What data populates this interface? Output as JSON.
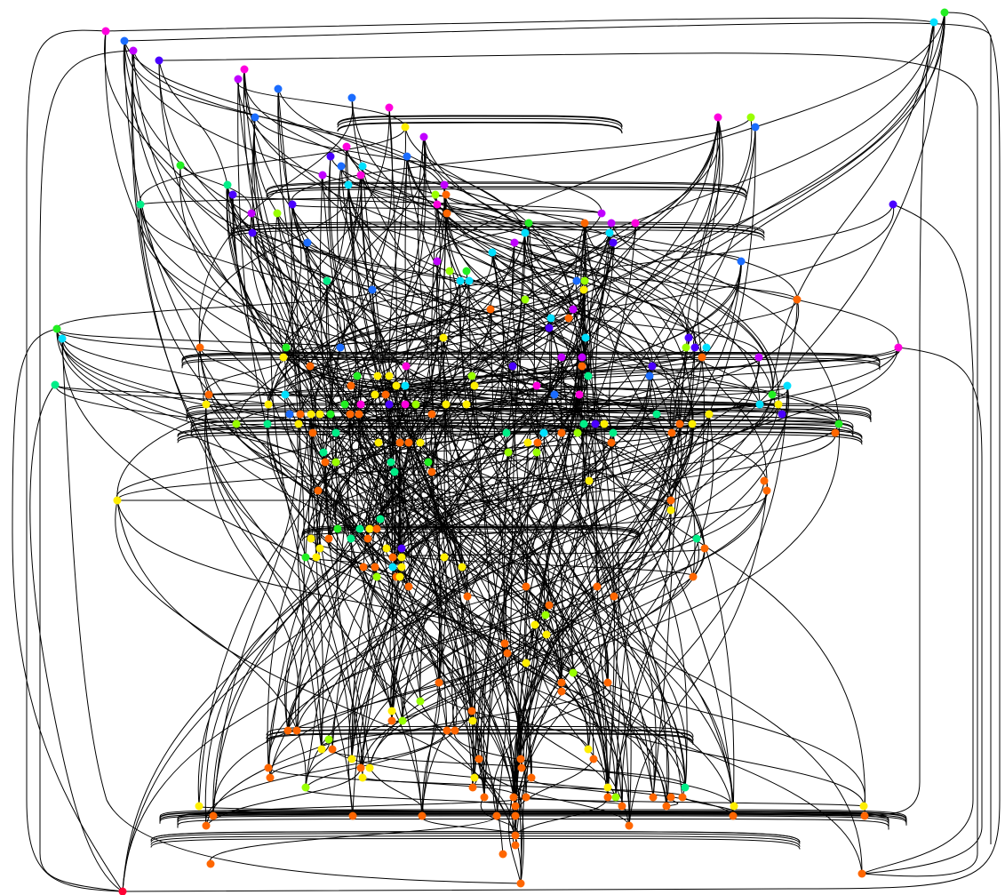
{
  "diagram": {
    "type": "network-graph",
    "node_colors": {
      "magenta": "#ff00dd",
      "violet": "#c000ff",
      "indigo": "#4a00ff",
      "blue": "#1a6cff",
      "cyan": "#00e0ff",
      "teal": "#00ee88",
      "green": "#22ee22",
      "lime": "#99ff00",
      "yellow": "#ffee00",
      "orange": "#ff6600",
      "red": "#ff0033"
    },
    "edge_color": "#000000"
  }
}
